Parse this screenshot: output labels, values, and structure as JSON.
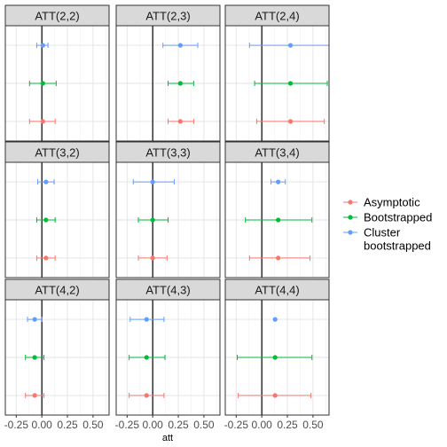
{
  "chart_data": {
    "type": "scatter",
    "subtype": "point-range faceted",
    "xlabel": "att",
    "xlim": [
      -0.3,
      0.6
    ],
    "x_ticks": [
      -0.25,
      0,
      0.25,
      0.5
    ],
    "x_tick_labels": [
      "-0.25",
      "0.00",
      "0.25",
      "0.50"
    ],
    "reference_line_x": 0,
    "grid": true,
    "legend_position": "right",
    "series": [
      {
        "name": "Asymptotic",
        "color": "#F8766D"
      },
      {
        "name": "Bootstrapped",
        "color": "#00BA38"
      },
      {
        "name": "Cluster\nbootstrapped",
        "color": "#619CFF"
      }
    ],
    "panels": [
      {
        "label": "ATT(2,2)",
        "estimates": [
          {
            "series": "Asymptotic",
            "value": 0.01,
            "lower": -0.12,
            "upper": 0.13
          },
          {
            "series": "Bootstrapped",
            "value": 0.01,
            "lower": -0.12,
            "upper": 0.14
          },
          {
            "series": "Cluster\nbootstrapped",
            "value": 0.01,
            "lower": -0.05,
            "upper": 0.06
          }
        ]
      },
      {
        "label": "ATT(2,3)",
        "estimates": [
          {
            "series": "Asymptotic",
            "value": 0.27,
            "lower": 0.15,
            "upper": 0.4
          },
          {
            "series": "Bootstrapped",
            "value": 0.27,
            "lower": 0.15,
            "upper": 0.4
          },
          {
            "series": "Cluster\nbootstrapped",
            "value": 0.27,
            "lower": 0.1,
            "upper": 0.44
          }
        ]
      },
      {
        "label": "ATT(2,4)",
        "estimates": [
          {
            "series": "Asymptotic",
            "value": 0.28,
            "lower": -0.05,
            "upper": 0.61
          },
          {
            "series": "Bootstrapped",
            "value": 0.28,
            "lower": -0.07,
            "upper": 0.64
          },
          {
            "series": "Cluster\nbootstrapped",
            "value": 0.28,
            "lower": -0.12,
            "upper": 0.68
          }
        ]
      },
      {
        "label": "ATT(3,2)",
        "estimates": [
          {
            "series": "Asymptotic",
            "value": 0.04,
            "lower": -0.05,
            "upper": 0.13
          },
          {
            "series": "Bootstrapped",
            "value": 0.04,
            "lower": -0.05,
            "upper": 0.13
          },
          {
            "series": "Cluster\nbootstrapped",
            "value": 0.04,
            "lower": -0.04,
            "upper": 0.12
          }
        ]
      },
      {
        "label": "ATT(3,3)",
        "estimates": [
          {
            "series": "Asymptotic",
            "value": 0.0,
            "lower": -0.14,
            "upper": 0.14
          },
          {
            "series": "Bootstrapped",
            "value": 0.0,
            "lower": -0.14,
            "upper": 0.15
          },
          {
            "series": "Cluster\nbootstrapped",
            "value": 0.0,
            "lower": -0.19,
            "upper": 0.21
          }
        ]
      },
      {
        "label": "ATT(3,4)",
        "estimates": [
          {
            "series": "Asymptotic",
            "value": 0.16,
            "lower": -0.12,
            "upper": 0.47
          },
          {
            "series": "Bootstrapped",
            "value": 0.16,
            "lower": -0.16,
            "upper": 0.49
          },
          {
            "series": "Cluster\nbootstrapped",
            "value": 0.16,
            "lower": 0.09,
            "upper": 0.23
          }
        ]
      },
      {
        "label": "ATT(4,2)",
        "estimates": [
          {
            "series": "Asymptotic",
            "value": -0.07,
            "lower": -0.16,
            "upper": 0.02
          },
          {
            "series": "Bootstrapped",
            "value": -0.07,
            "lower": -0.16,
            "upper": 0.02
          },
          {
            "series": "Cluster\nbootstrapped",
            "value": -0.07,
            "lower": -0.14,
            "upper": 0.0
          }
        ]
      },
      {
        "label": "ATT(4,3)",
        "estimates": [
          {
            "series": "Asymptotic",
            "value": -0.06,
            "lower": -0.23,
            "upper": 0.11
          },
          {
            "series": "Bootstrapped",
            "value": -0.06,
            "lower": -0.23,
            "upper": 0.12
          },
          {
            "series": "Cluster\nbootstrapped",
            "value": -0.06,
            "lower": -0.22,
            "upper": 0.11
          }
        ]
      },
      {
        "label": "ATT(4,4)",
        "estimates": [
          {
            "series": "Asymptotic",
            "value": 0.13,
            "lower": -0.23,
            "upper": 0.48
          },
          {
            "series": "Bootstrapped",
            "value": 0.13,
            "lower": -0.24,
            "upper": 0.49
          },
          {
            "series": "Cluster\nbootstrapped",
            "value": 0.13,
            "lower": 0.13,
            "upper": 0.13
          }
        ]
      }
    ]
  }
}
